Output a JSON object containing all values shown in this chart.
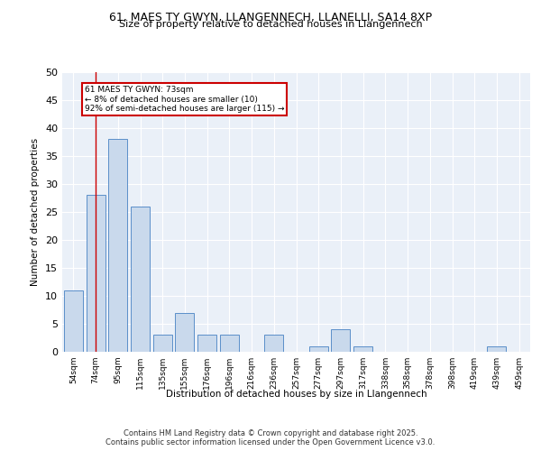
{
  "title": "61, MAES TY GWYN, LLANGENNECH, LLANELLI, SA14 8XP",
  "subtitle": "Size of property relative to detached houses in Llangennech",
  "xlabel": "Distribution of detached houses by size in Llangennech",
  "ylabel": "Number of detached properties",
  "categories": [
    "54sqm",
    "74sqm",
    "95sqm",
    "115sqm",
    "135sqm",
    "155sqm",
    "176sqm",
    "196sqm",
    "216sqm",
    "236sqm",
    "257sqm",
    "277sqm",
    "297sqm",
    "317sqm",
    "338sqm",
    "358sqm",
    "378sqm",
    "398sqm",
    "419sqm",
    "439sqm",
    "459sqm"
  ],
  "values": [
    11,
    28,
    38,
    26,
    3,
    7,
    3,
    3,
    0,
    3,
    0,
    1,
    4,
    1,
    0,
    0,
    0,
    0,
    0,
    1,
    0
  ],
  "bar_color": "#c9d9ec",
  "bar_edgecolor": "#5b8fc9",
  "background_color": "#eaf0f8",
  "grid_color": "#ffffff",
  "vline_x": 1,
  "vline_color": "#cc0000",
  "annotation_line1": "61 MAES TY GWYN: 73sqm",
  "annotation_line2": "← 8% of detached houses are smaller (10)",
  "annotation_line3": "92% of semi-detached houses are larger (115) →",
  "annotation_box_color": "#cc0000",
  "annotation_box_bg": "#ffffff",
  "ylim": [
    0,
    50
  ],
  "yticks": [
    0,
    5,
    10,
    15,
    20,
    25,
    30,
    35,
    40,
    45,
    50
  ],
  "footer_line1": "Contains HM Land Registry data © Crown copyright and database right 2025.",
  "footer_line2": "Contains public sector information licensed under the Open Government Licence v3.0."
}
